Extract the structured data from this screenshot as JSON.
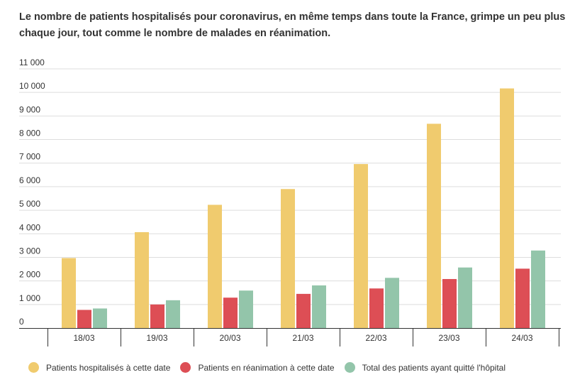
{
  "chart_data": {
    "type": "bar",
    "title": "Le nombre de patients hospitalisés pour coronavirus, en même temps dans toute la France, grimpe un peu plus chaque jour, tout comme le nombre de malades en réanimation.",
    "categories": [
      "18/03",
      "19/03",
      "20/03",
      "21/03",
      "22/03",
      "23/03",
      "24/03"
    ],
    "series": [
      {
        "name": "Patients hospitalisés à cette date",
        "color": "#f0cb6e",
        "values": [
          2970,
          4070,
          5230,
          5900,
          6960,
          8670,
          10170
        ]
      },
      {
        "name": "Patients en réanimation à cette date",
        "color": "#dd4e55",
        "values": [
          770,
          1000,
          1290,
          1450,
          1680,
          2080,
          2520
        ]
      },
      {
        "name": "Total des patients ayant quitté l'hôpital",
        "color": "#93c5aa",
        "values": [
          830,
          1180,
          1590,
          1810,
          2130,
          2570,
          3290
        ]
      }
    ],
    "y_ticks": [
      "0",
      "1 000",
      "2 000",
      "3 000",
      "4 000",
      "5 000",
      "6 000",
      "7 000",
      "8 000",
      "9 000",
      "10 000",
      "11 000"
    ],
    "ylim": [
      0,
      11000
    ],
    "grid": true,
    "legend_position": "bottom"
  }
}
